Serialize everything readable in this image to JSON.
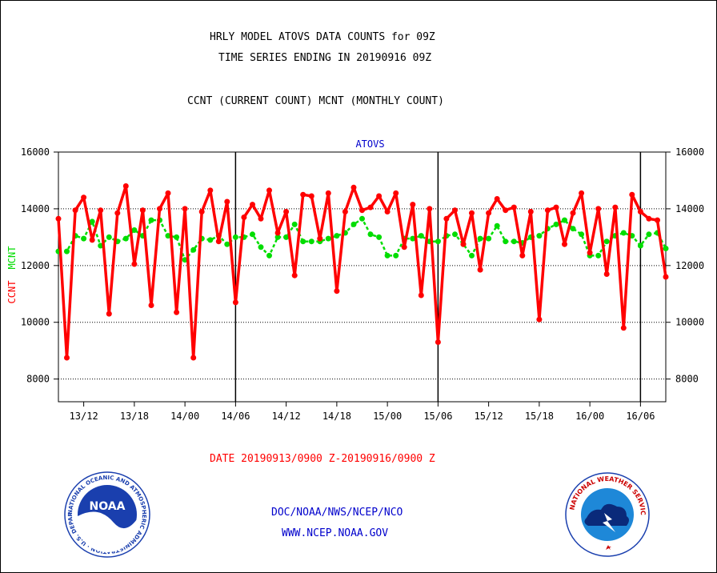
{
  "header": {
    "title_line1": "HRLY MODEL ATOVS DATA COUNTS for 09Z",
    "title_line2": "TIME SERIES ENDING IN 20190916 09Z",
    "subtitle": "CCNT (CURRENT COUNT) MCNT (MONTHLY COUNT)"
  },
  "footer": {
    "date_range": "DATE 20190913/0900 Z-20190916/0900 Z",
    "org_line": "DOC/NOAA/NWS/NCEP/NCO",
    "url_line": "WWW.NCEP.NOAA.GOV",
    "noaa_logo_text": "NOAA",
    "noaa_seal_ring_text": "NATIONAL OCEANIC AND ATMOSPHERIC ADMINISTRATION · U.S. DEPARTMENT OF COMMERCE",
    "nws_seal_ring_text": "NATIONAL WEATHER SERVICE"
  },
  "colors": {
    "ccnt": "#ff0000",
    "mcnt": "#00dd00",
    "axis_text": "#000000",
    "title_text": "#000000",
    "panel_title": "#0000cc",
    "link_text": "#0000cc",
    "noaa_blue": "#1a3fae",
    "nws_blue": "#1e88d8"
  },
  "chart_data": {
    "type": "line",
    "title": "ATOVS",
    "ylabel_primary": "CCNT",
    "ylabel_secondary": "MCNT",
    "ylim": [
      7200,
      16000
    ],
    "yticks": [
      8000,
      10000,
      12000,
      14000,
      16000
    ],
    "gridlines": [
      8000,
      10000,
      12000,
      14000
    ],
    "xlim": [
      0,
      72
    ],
    "xticks": [
      {
        "x": 3,
        "label": "13/12"
      },
      {
        "x": 9,
        "label": "13/18"
      },
      {
        "x": 15,
        "label": "14/00"
      },
      {
        "x": 21,
        "label": "14/06"
      },
      {
        "x": 27,
        "label": "14/12"
      },
      {
        "x": 33,
        "label": "14/18"
      },
      {
        "x": 39,
        "label": "15/00"
      },
      {
        "x": 45,
        "label": "15/06"
      },
      {
        "x": 51,
        "label": "15/12"
      },
      {
        "x": 57,
        "label": "15/18"
      },
      {
        "x": 63,
        "label": "16/00"
      },
      {
        "x": 69,
        "label": "16/06"
      }
    ],
    "day_boundaries": [
      21,
      45,
      69
    ],
    "series": [
      {
        "name": "CCNT",
        "values": [
          13650,
          8750,
          13950,
          14400,
          12900,
          13950,
          10300,
          13850,
          14800,
          12050,
          13950,
          10600,
          14000,
          14550,
          10350,
          14000,
          8750,
          13900,
          14650,
          12850,
          14250,
          10700,
          13700,
          14150,
          13650,
          14650,
          13150,
          13900,
          11650,
          14500,
          14450,
          12950,
          14550,
          11100,
          13900,
          14750,
          13950,
          14050,
          14450,
          13900,
          14550,
          12650,
          14150,
          10950,
          14000,
          9300,
          13650,
          13950,
          12750,
          13850,
          11850,
          13850,
          14350,
          13950,
          14050,
          12350,
          13900,
          10100,
          13950,
          14050,
          12750,
          13850,
          14550,
          12450,
          14000,
          11700,
          14050,
          9800,
          14500,
          13900,
          13650,
          13600,
          11600
        ]
      },
      {
        "name": "MCNT",
        "values": [
          12500,
          12500,
          13050,
          12950,
          13550,
          12700,
          13000,
          12850,
          12950,
          13250,
          13050,
          13600,
          13600,
          13050,
          13000,
          12200,
          12550,
          12950,
          12900,
          13050,
          12750,
          13000,
          13000,
          13100,
          12650,
          12350,
          13000,
          13000,
          13450,
          12850,
          12850,
          12850,
          12950,
          13050,
          13150,
          13450,
          13650,
          13100,
          13000,
          12350,
          12350,
          12950,
          12950,
          13050,
          12850,
          12850,
          13050,
          13100,
          12750,
          12350,
          12950,
          12950,
          13400,
          12850,
          12850,
          12800,
          13000,
          13050,
          13300,
          13450,
          13600,
          13300,
          13100,
          12350,
          12350,
          12850,
          13050,
          13150,
          13050,
          12700,
          13100,
          13150,
          12600
        ]
      }
    ]
  }
}
